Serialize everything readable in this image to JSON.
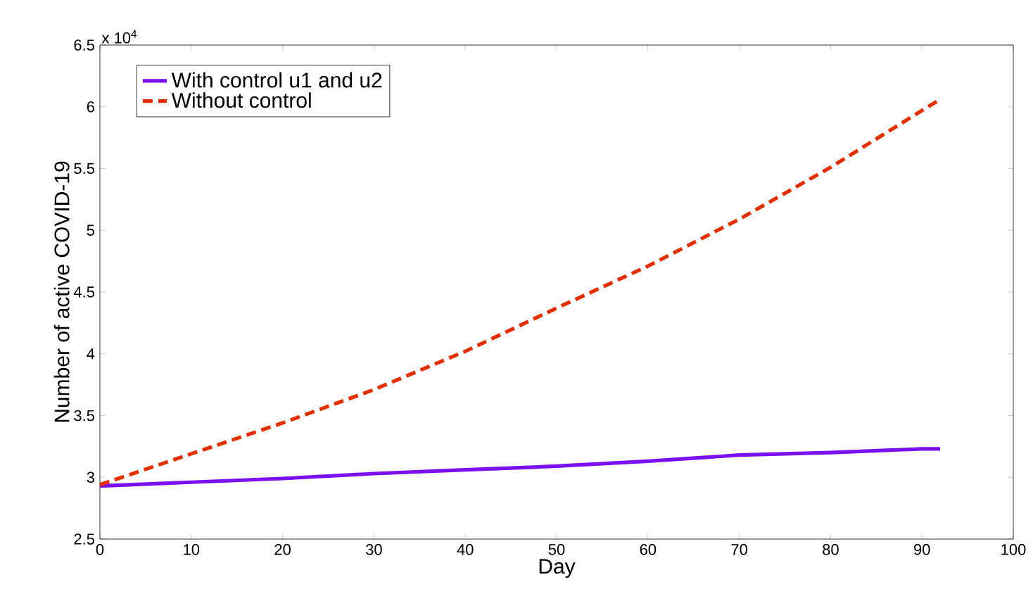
{
  "chart_data": {
    "type": "line",
    "xlabel": "Day",
    "ylabel": "Number of active COVID-19",
    "annotations": [
      "x 10$^{4}$"
    ],
    "xlim": [
      0,
      100
    ],
    "xticks": [
      0,
      10,
      20,
      30,
      40,
      50,
      60,
      70,
      80,
      90,
      100
    ],
    "ylim": [
      2.5,
      6.5
    ],
    "yticks": [
      2.5,
      3,
      3.5,
      4,
      4.5,
      5,
      5.5,
      6,
      6.5
    ],
    "legend": "top left",
    "grid": false,
    "series": [
      {
        "name": "With control u1 and u2",
        "color": "#7a0ff0",
        "line_style": "solid",
        "x": [
          0,
          10,
          20,
          30,
          40,
          50,
          60,
          70,
          80,
          90,
          92
        ],
        "values": [
          2.93,
          2.96,
          2.99,
          3.03,
          3.06,
          3.09,
          3.13,
          3.18,
          3.2,
          3.23,
          3.23
        ]
      },
      {
        "name": "Without control",
        "color": "#e03000",
        "line_style": "dashed",
        "x": [
          0,
          10,
          20,
          30,
          40,
          50,
          60,
          70,
          80,
          90,
          92
        ],
        "values": [
          2.94,
          3.19,
          3.44,
          3.71,
          4.02,
          4.37,
          4.71,
          5.09,
          5.51,
          5.97,
          6.06
        ]
      }
    ]
  }
}
